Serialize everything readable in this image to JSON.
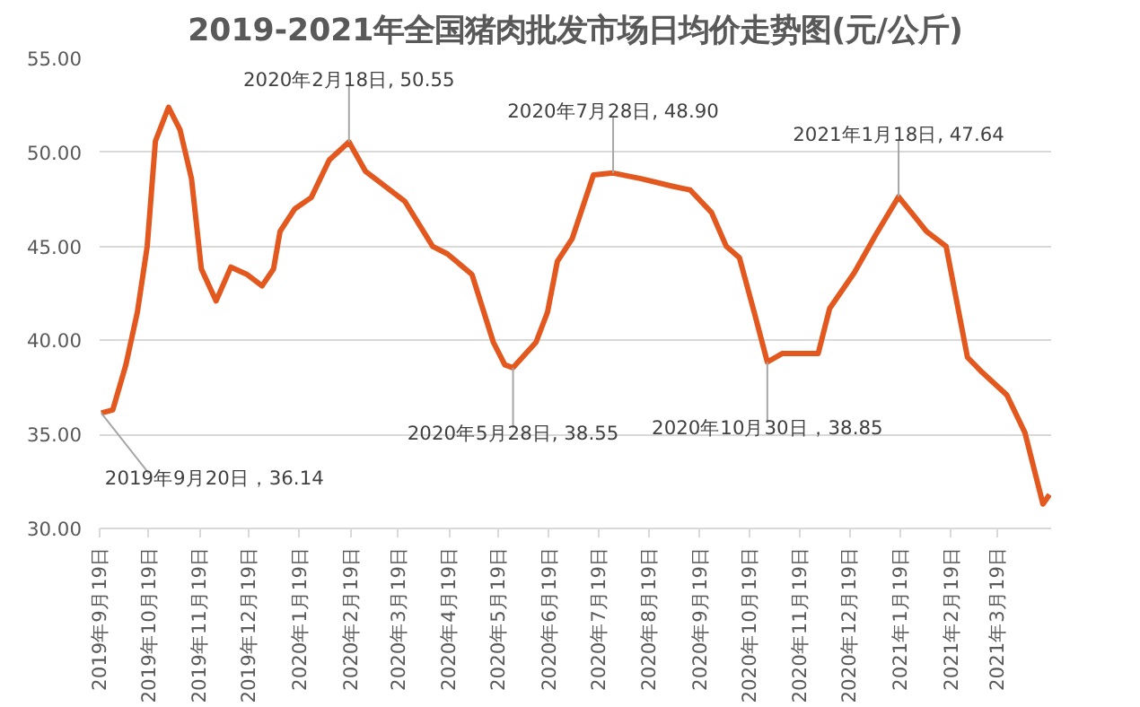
{
  "chart_data": {
    "type": "line",
    "title": "2019-2021年全国猪肉批发市场日均价走势图(元/公斤)",
    "x": [
      "2019-09-20",
      "2019-09-27",
      "2019-10-05",
      "2019-10-12",
      "2019-10-18",
      "2019-10-23",
      "2019-10-31",
      "2019-11-07",
      "2019-11-14",
      "2019-11-20",
      "2019-11-29",
      "2019-12-08",
      "2019-12-18",
      "2019-12-27",
      "2020-01-03",
      "2020-01-07",
      "2020-01-16",
      "2020-01-26",
      "2020-02-06",
      "2020-02-18",
      "2020-02-28",
      "2020-03-08",
      "2020-03-23",
      "2020-04-09",
      "2020-04-18",
      "2020-05-03",
      "2020-05-16",
      "2020-05-23",
      "2020-05-28",
      "2020-06-11",
      "2020-06-18",
      "2020-06-24",
      "2020-07-03",
      "2020-07-16",
      "2020-07-28",
      "2020-08-14",
      "2020-09-02",
      "2020-09-13",
      "2020-09-26",
      "2020-10-05",
      "2020-10-13",
      "2020-10-22",
      "2020-10-30",
      "2020-11-08",
      "2020-11-30",
      "2020-12-07",
      "2020-12-22",
      "2021-01-04",
      "2021-01-18",
      "2021-02-04",
      "2021-02-16",
      "2021-03-01",
      "2021-03-10",
      "2021-03-25",
      "2021-04-05",
      "2021-04-16",
      "2021-04-20"
    ],
    "series": [
      {
        "color": "#e2581e",
        "values": [
          36.14,
          36.3,
          38.7,
          41.5,
          45.0,
          50.6,
          52.4,
          51.2,
          48.6,
          43.8,
          42.1,
          43.9,
          43.5,
          42.9,
          43.8,
          45.8,
          47.0,
          47.6,
          49.6,
          50.55,
          49.0,
          48.4,
          47.4,
          45.0,
          44.6,
          43.5,
          39.9,
          38.7,
          38.55,
          39.9,
          41.5,
          44.2,
          45.4,
          48.8,
          48.9,
          48.6,
          48.2,
          48.0,
          46.8,
          45.0,
          44.4,
          41.5,
          38.85,
          39.3,
          39.3,
          41.7,
          43.6,
          45.6,
          47.64,
          45.8,
          45.0,
          39.1,
          38.3,
          37.1,
          35.1,
          31.3,
          31.8
        ]
      }
    ],
    "annotations": [
      {
        "text": "2019年9月20日，36.14",
        "x": "2019-09-20",
        "y": 36.14
      },
      {
        "text": "2020年2月18日, 50.55",
        "x": "2020-02-18",
        "y": 50.55
      },
      {
        "text": "2020年5月28日, 38.55",
        "x": "2020-05-28",
        "y": 38.55
      },
      {
        "text": "2020年7月28日, 48.90",
        "x": "2020-07-28",
        "y": 48.9
      },
      {
        "text": "2020年10月30日，38.85",
        "x": "2020-10-30",
        "y": 38.85
      },
      {
        "text": "2021年1月18日, 47.64",
        "x": "2021-01-18",
        "y": 47.64
      }
    ],
    "xlim": [
      "2019-09-19",
      "2021-04-21"
    ],
    "xticks": [
      {
        "value": "2019-09-19",
        "label": "2019年9月19日"
      },
      {
        "value": "2019-10-19",
        "label": "2019年10月19日"
      },
      {
        "value": "2019-11-19",
        "label": "2019年11月19日"
      },
      {
        "value": "2019-12-19",
        "label": "2019年12月19日"
      },
      {
        "value": "2020-01-19",
        "label": "2020年1月19日"
      },
      {
        "value": "2020-02-19",
        "label": "2020年2月19日"
      },
      {
        "value": "2020-03-19",
        "label": "2020年3月19日"
      },
      {
        "value": "2020-04-19",
        "label": "2020年4月19日"
      },
      {
        "value": "2020-05-19",
        "label": "2020年5月19日"
      },
      {
        "value": "2020-06-19",
        "label": "2020年6月19日"
      },
      {
        "value": "2020-07-19",
        "label": "2020年7月19日"
      },
      {
        "value": "2020-08-19",
        "label": "2020年8月19日"
      },
      {
        "value": "2020-09-19",
        "label": "2020年9月19日"
      },
      {
        "value": "2020-10-19",
        "label": "2020年10月19日"
      },
      {
        "value": "2020-11-19",
        "label": "2020年11月19日"
      },
      {
        "value": "2020-12-19",
        "label": "2020年12月19日"
      },
      {
        "value": "2021-01-19",
        "label": "2021年1月19日"
      },
      {
        "value": "2021-02-19",
        "label": "2021年2月19日"
      },
      {
        "value": "2021-03-19",
        "label": "2021年3月19日"
      }
    ],
    "ylim": [
      30,
      55
    ],
    "yticks": [
      {
        "value": 30,
        "label": "30.00"
      },
      {
        "value": 35,
        "label": "35.00"
      },
      {
        "value": 40,
        "label": "40.00"
      },
      {
        "value": 45,
        "label": "45.00"
      },
      {
        "value": 50,
        "label": "50.00"
      },
      {
        "value": 55,
        "label": "55.00"
      }
    ],
    "grid": "y",
    "marker": "none",
    "line_style": "solid"
  }
}
